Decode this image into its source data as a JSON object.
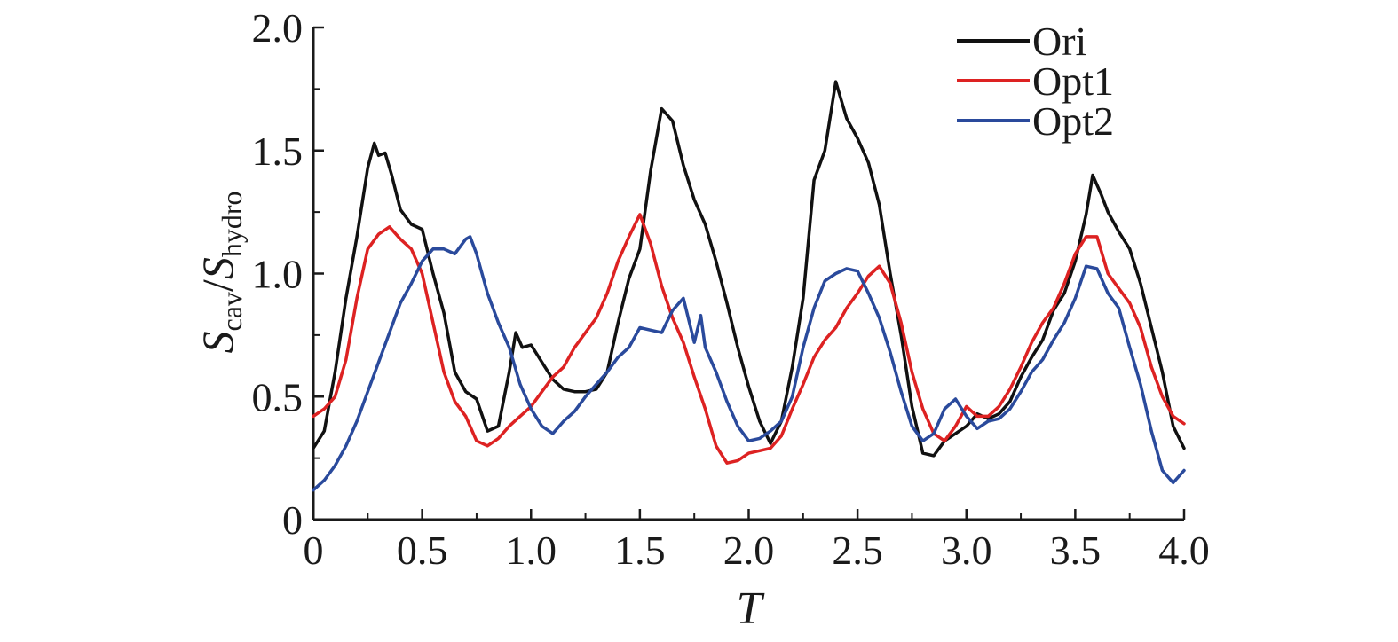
{
  "chart_data": {
    "type": "line",
    "xlabel": "T",
    "ylabel": {
      "base": "S",
      "num_sub": "cav",
      "slash": "/",
      "den_base": "S",
      "den_sub": "hydro"
    },
    "xlim": [
      0,
      4.0
    ],
    "ylim": [
      0,
      2.0
    ],
    "x_ticks": [
      0,
      0.5,
      1.0,
      1.5,
      2.0,
      2.5,
      3.0,
      3.5,
      4.0
    ],
    "x_tick_labels": [
      "0",
      "0.5",
      "1.0",
      "1.5",
      "2.0",
      "2.5",
      "3.0",
      "3.5",
      "4.0"
    ],
    "y_ticks": [
      0,
      0.5,
      1.0,
      1.5,
      2.0
    ],
    "y_tick_labels": [
      "0",
      "0.5",
      "1.0",
      "1.5",
      "2.0"
    ],
    "grid": false,
    "legend_position": "top-right",
    "series": [
      {
        "name": "Ori",
        "color": "#111111",
        "x": [
          0,
          0.05,
          0.1,
          0.15,
          0.2,
          0.25,
          0.28,
          0.3,
          0.33,
          0.36,
          0.4,
          0.45,
          0.5,
          0.55,
          0.6,
          0.65,
          0.7,
          0.75,
          0.8,
          0.85,
          0.9,
          0.93,
          0.96,
          1.0,
          1.05,
          1.1,
          1.15,
          1.2,
          1.25,
          1.3,
          1.35,
          1.4,
          1.45,
          1.5,
          1.55,
          1.6,
          1.65,
          1.7,
          1.75,
          1.8,
          1.85,
          1.9,
          1.95,
          2.0,
          2.05,
          2.1,
          2.15,
          2.2,
          2.25,
          2.3,
          2.35,
          2.4,
          2.45,
          2.5,
          2.55,
          2.6,
          2.65,
          2.7,
          2.75,
          2.8,
          2.85,
          2.9,
          2.95,
          3.0,
          3.05,
          3.1,
          3.15,
          3.2,
          3.25,
          3.3,
          3.35,
          3.4,
          3.45,
          3.5,
          3.55,
          3.58,
          3.62,
          3.65,
          3.7,
          3.75,
          3.8,
          3.85,
          3.9,
          3.95,
          4.0
        ],
        "y": [
          0.29,
          0.36,
          0.6,
          0.9,
          1.15,
          1.43,
          1.53,
          1.48,
          1.49,
          1.4,
          1.26,
          1.2,
          1.18,
          1.0,
          0.84,
          0.6,
          0.52,
          0.49,
          0.36,
          0.38,
          0.6,
          0.76,
          0.7,
          0.71,
          0.64,
          0.57,
          0.53,
          0.52,
          0.52,
          0.53,
          0.6,
          0.8,
          0.98,
          1.1,
          1.42,
          1.67,
          1.62,
          1.44,
          1.3,
          1.2,
          1.05,
          0.88,
          0.7,
          0.54,
          0.4,
          0.31,
          0.4,
          0.62,
          0.9,
          1.38,
          1.5,
          1.78,
          1.63,
          1.55,
          1.45,
          1.28,
          1.0,
          0.75,
          0.46,
          0.27,
          0.26,
          0.32,
          0.35,
          0.38,
          0.43,
          0.41,
          0.43,
          0.48,
          0.58,
          0.66,
          0.73,
          0.85,
          0.92,
          1.05,
          1.24,
          1.4,
          1.32,
          1.25,
          1.17,
          1.1,
          0.96,
          0.78,
          0.6,
          0.38,
          0.29
        ]
      },
      {
        "name": "Opt1",
        "color": "#dd2222",
        "x": [
          0,
          0.05,
          0.1,
          0.15,
          0.2,
          0.25,
          0.3,
          0.35,
          0.4,
          0.45,
          0.5,
          0.55,
          0.6,
          0.65,
          0.7,
          0.75,
          0.8,
          0.85,
          0.9,
          0.95,
          1.0,
          1.05,
          1.1,
          1.15,
          1.2,
          1.25,
          1.3,
          1.35,
          1.4,
          1.45,
          1.5,
          1.55,
          1.6,
          1.65,
          1.7,
          1.75,
          1.8,
          1.85,
          1.9,
          1.95,
          2.0,
          2.05,
          2.1,
          2.15,
          2.2,
          2.25,
          2.3,
          2.35,
          2.4,
          2.45,
          2.5,
          2.55,
          2.6,
          2.65,
          2.7,
          2.75,
          2.8,
          2.85,
          2.9,
          2.95,
          3.0,
          3.05,
          3.1,
          3.15,
          3.2,
          3.25,
          3.3,
          3.35,
          3.4,
          3.45,
          3.5,
          3.55,
          3.6,
          3.65,
          3.7,
          3.75,
          3.8,
          3.85,
          3.9,
          3.95,
          4.0
        ],
        "y": [
          0.42,
          0.45,
          0.5,
          0.65,
          0.9,
          1.1,
          1.16,
          1.19,
          1.14,
          1.1,
          1.0,
          0.8,
          0.6,
          0.48,
          0.42,
          0.32,
          0.3,
          0.33,
          0.38,
          0.42,
          0.46,
          0.52,
          0.58,
          0.62,
          0.7,
          0.76,
          0.82,
          0.92,
          1.05,
          1.15,
          1.24,
          1.12,
          0.95,
          0.82,
          0.72,
          0.58,
          0.45,
          0.3,
          0.23,
          0.24,
          0.27,
          0.28,
          0.29,
          0.34,
          0.45,
          0.55,
          0.66,
          0.73,
          0.78,
          0.86,
          0.92,
          0.99,
          1.03,
          0.96,
          0.8,
          0.6,
          0.45,
          0.35,
          0.32,
          0.38,
          0.46,
          0.42,
          0.42,
          0.46,
          0.53,
          0.62,
          0.72,
          0.8,
          0.86,
          0.96,
          1.08,
          1.15,
          1.15,
          1.0,
          0.94,
          0.88,
          0.78,
          0.62,
          0.5,
          0.42,
          0.39
        ]
      },
      {
        "name": "Opt2",
        "color": "#2a4a9c",
        "x": [
          0,
          0.05,
          0.1,
          0.15,
          0.2,
          0.25,
          0.3,
          0.35,
          0.4,
          0.45,
          0.5,
          0.55,
          0.6,
          0.65,
          0.7,
          0.72,
          0.75,
          0.8,
          0.85,
          0.9,
          0.95,
          1.0,
          1.05,
          1.1,
          1.15,
          1.2,
          1.25,
          1.3,
          1.35,
          1.4,
          1.45,
          1.5,
          1.55,
          1.6,
          1.65,
          1.7,
          1.75,
          1.78,
          1.8,
          1.85,
          1.9,
          1.95,
          2.0,
          2.05,
          2.1,
          2.15,
          2.2,
          2.25,
          2.3,
          2.35,
          2.4,
          2.45,
          2.5,
          2.55,
          2.6,
          2.65,
          2.7,
          2.75,
          2.8,
          2.85,
          2.9,
          2.95,
          3.0,
          3.05,
          3.1,
          3.15,
          3.2,
          3.25,
          3.3,
          3.35,
          3.4,
          3.45,
          3.5,
          3.55,
          3.6,
          3.65,
          3.7,
          3.75,
          3.8,
          3.85,
          3.9,
          3.95,
          4.0
        ],
        "y": [
          0.12,
          0.16,
          0.22,
          0.3,
          0.4,
          0.52,
          0.64,
          0.76,
          0.88,
          0.96,
          1.05,
          1.1,
          1.1,
          1.08,
          1.14,
          1.15,
          1.08,
          0.92,
          0.8,
          0.7,
          0.55,
          0.45,
          0.38,
          0.35,
          0.4,
          0.44,
          0.5,
          0.55,
          0.6,
          0.66,
          0.7,
          0.78,
          0.77,
          0.76,
          0.85,
          0.9,
          0.72,
          0.83,
          0.7,
          0.6,
          0.48,
          0.38,
          0.32,
          0.33,
          0.36,
          0.4,
          0.5,
          0.7,
          0.86,
          0.97,
          1.0,
          1.02,
          1.01,
          0.92,
          0.82,
          0.68,
          0.52,
          0.38,
          0.32,
          0.35,
          0.45,
          0.49,
          0.42,
          0.37,
          0.4,
          0.41,
          0.45,
          0.52,
          0.6,
          0.65,
          0.73,
          0.8,
          0.9,
          1.03,
          1.02,
          0.92,
          0.86,
          0.7,
          0.55,
          0.36,
          0.2,
          0.15,
          0.2
        ]
      }
    ]
  }
}
